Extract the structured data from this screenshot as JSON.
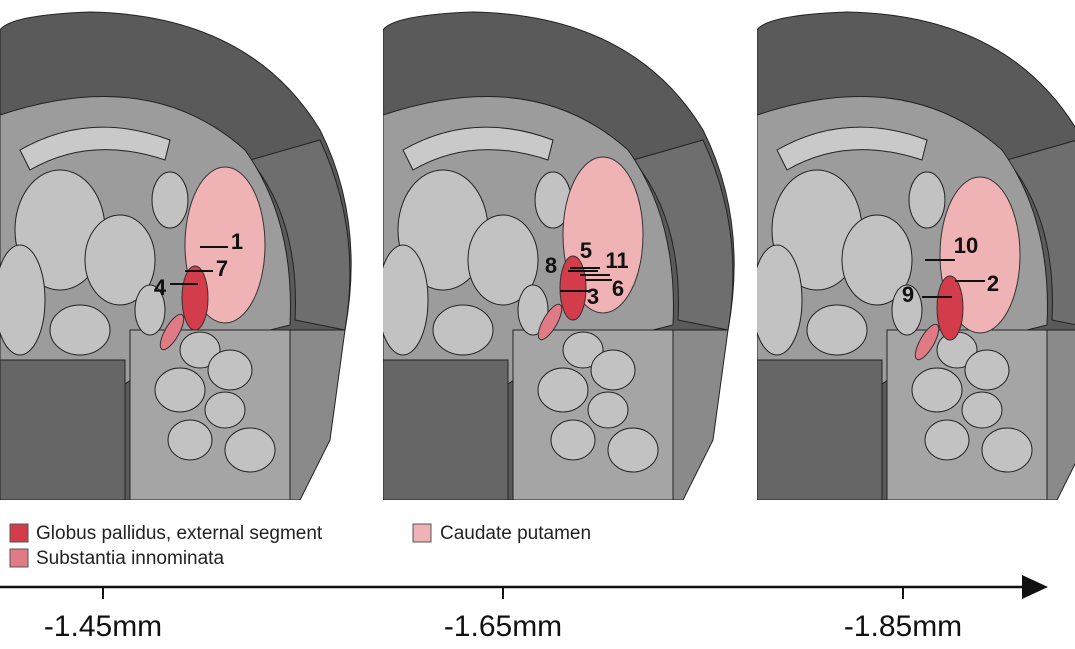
{
  "sections": [
    {
      "label": "-1.45mm",
      "sites": [
        "1",
        "7",
        "4"
      ]
    },
    {
      "label": "-1.65mm",
      "sites": [
        "5",
        "8",
        "11",
        "3",
        "6"
      ]
    },
    {
      "label": "-1.85mm",
      "sites": [
        "10",
        "2",
        "9"
      ]
    }
  ],
  "legend": [
    "Globus pallidus, external segment",
    "Caudate putamen",
    "Substantia innominata"
  ]
}
